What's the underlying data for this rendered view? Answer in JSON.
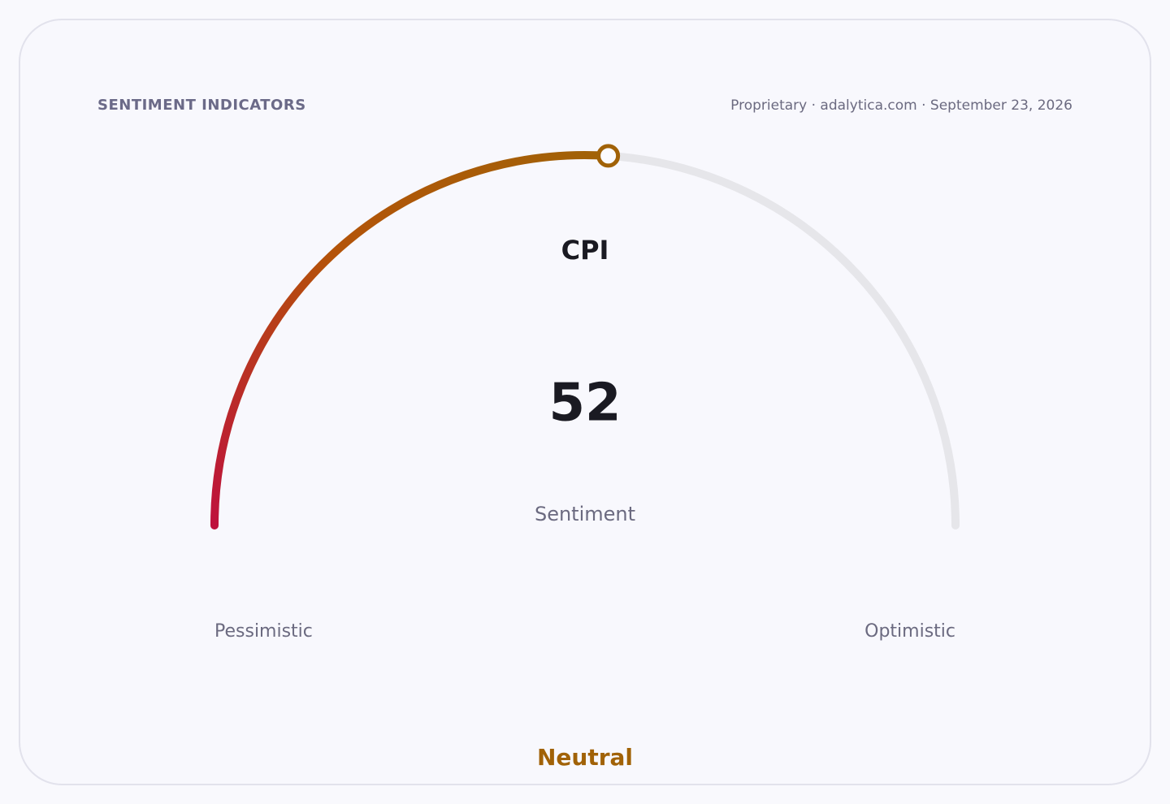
{
  "chart_data": {
    "type": "gauge",
    "header": "SENTIMENT INDICATORS",
    "source": "Proprietary · adalytica.com · September 23, 2026",
    "title": "CPI",
    "value": 52,
    "subtitle": "Sentiment",
    "ylim": [
      0,
      100
    ],
    "min_label": "Pessimistic",
    "max_label": "Optimistic",
    "status": "Neutral",
    "status_color": "#a16207",
    "colors": [
      "#be123c",
      "#b45309",
      "#a16207"
    ],
    "track_color": "#e6e6ea"
  }
}
